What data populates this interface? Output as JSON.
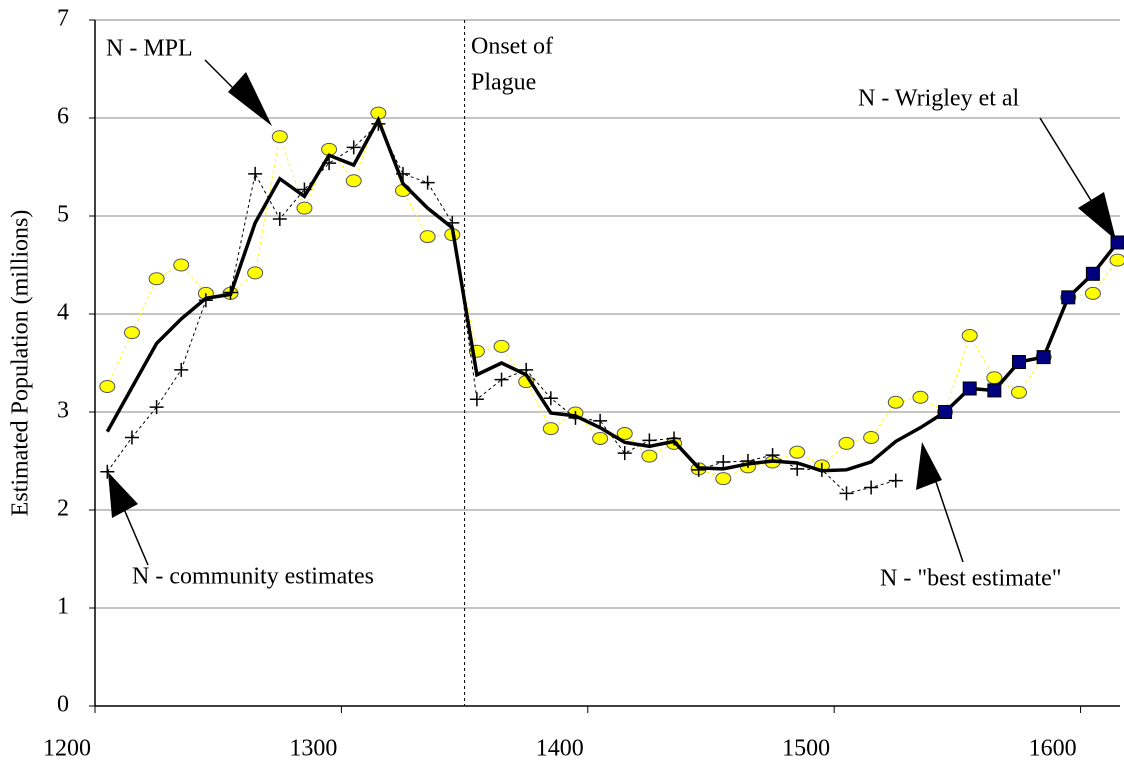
{
  "chart_data": {
    "type": "line",
    "y_label": "Estimated Population (millions)",
    "x": [
      1205,
      1215,
      1225,
      1235,
      1245,
      1255,
      1265,
      1275,
      1285,
      1295,
      1305,
      1315,
      1325,
      1335,
      1345,
      1355,
      1365,
      1375,
      1385,
      1395,
      1405,
      1415,
      1425,
      1435,
      1445,
      1455,
      1465,
      1475,
      1485,
      1495,
      1505,
      1515,
      1525,
      1535,
      1545,
      1555,
      1565,
      1575,
      1585,
      1595,
      1605,
      1615
    ],
    "xlim": [
      1200,
      1616
    ],
    "xticks": [
      1200,
      1300,
      1400,
      1500,
      1600
    ],
    "ylim": [
      0,
      7
    ],
    "yticks": [
      0,
      1,
      2,
      3,
      4,
      5,
      6,
      7
    ],
    "grid": true,
    "vline": 1350,
    "series": [
      {
        "color": "#ffff00",
        "marker": "circle",
        "line": "dashed",
        "values": [
          3.26,
          3.81,
          4.36,
          4.5,
          4.21,
          4.21,
          4.42,
          5.81,
          5.08,
          5.68,
          5.36,
          6.05,
          5.26,
          4.79,
          4.81,
          3.62,
          3.67,
          3.31,
          2.83,
          2.99,
          2.73,
          2.78,
          2.55,
          2.68,
          2.42,
          2.32,
          2.44,
          2.49,
          2.59,
          2.45,
          2.68,
          2.74,
          3.1,
          3.15,
          3.0,
          3.78,
          3.35,
          3.2,
          3.56,
          4.17,
          4.21,
          4.55
        ]
      },
      {
        "color": "#000000",
        "marker": "cross",
        "line": "dashed",
        "values": [
          2.39,
          2.74,
          3.05,
          3.43,
          4.14,
          4.22,
          5.43,
          4.97,
          5.27,
          5.54,
          5.7,
          5.94,
          5.43,
          5.34,
          4.93,
          3.13,
          3.33,
          3.43,
          3.14,
          2.94,
          2.91,
          2.58,
          2.71,
          2.73,
          2.41,
          2.49,
          2.5,
          2.56,
          2.42,
          2.41,
          2.17,
          2.23,
          2.3,
          null,
          null,
          null,
          null,
          null,
          null,
          null,
          null,
          null
        ]
      },
      {
        "color": "#000000",
        "marker": "none",
        "line": "solid",
        "values": [
          2.8,
          3.25,
          3.7,
          3.95,
          4.16,
          4.2,
          4.93,
          5.38,
          5.2,
          5.62,
          5.52,
          5.98,
          5.33,
          5.08,
          4.88,
          3.38,
          3.5,
          3.38,
          2.99,
          2.96,
          2.84,
          2.69,
          2.65,
          2.7,
          2.43,
          2.42,
          2.47,
          2.5,
          2.48,
          2.4,
          2.41,
          2.49,
          2.7,
          2.84,
          3.0,
          3.24,
          3.22,
          3.51,
          3.56,
          4.17,
          4.41,
          4.73
        ]
      },
      {
        "color": "#000080",
        "marker": "square",
        "line": "none",
        "values": [
          null,
          null,
          null,
          null,
          null,
          null,
          null,
          null,
          null,
          null,
          null,
          null,
          null,
          null,
          null,
          null,
          null,
          null,
          null,
          null,
          null,
          null,
          null,
          null,
          null,
          null,
          null,
          null,
          null,
          null,
          null,
          null,
          null,
          null,
          3.0,
          3.24,
          3.22,
          3.51,
          3.56,
          4.17,
          4.41,
          4.73
        ]
      }
    ],
    "annotations": [
      "N - MPL",
      "Onset of",
      "Plague",
      "N - Wrigley et al",
      "N - community estimates",
      "N - \"best estimate\""
    ]
  }
}
